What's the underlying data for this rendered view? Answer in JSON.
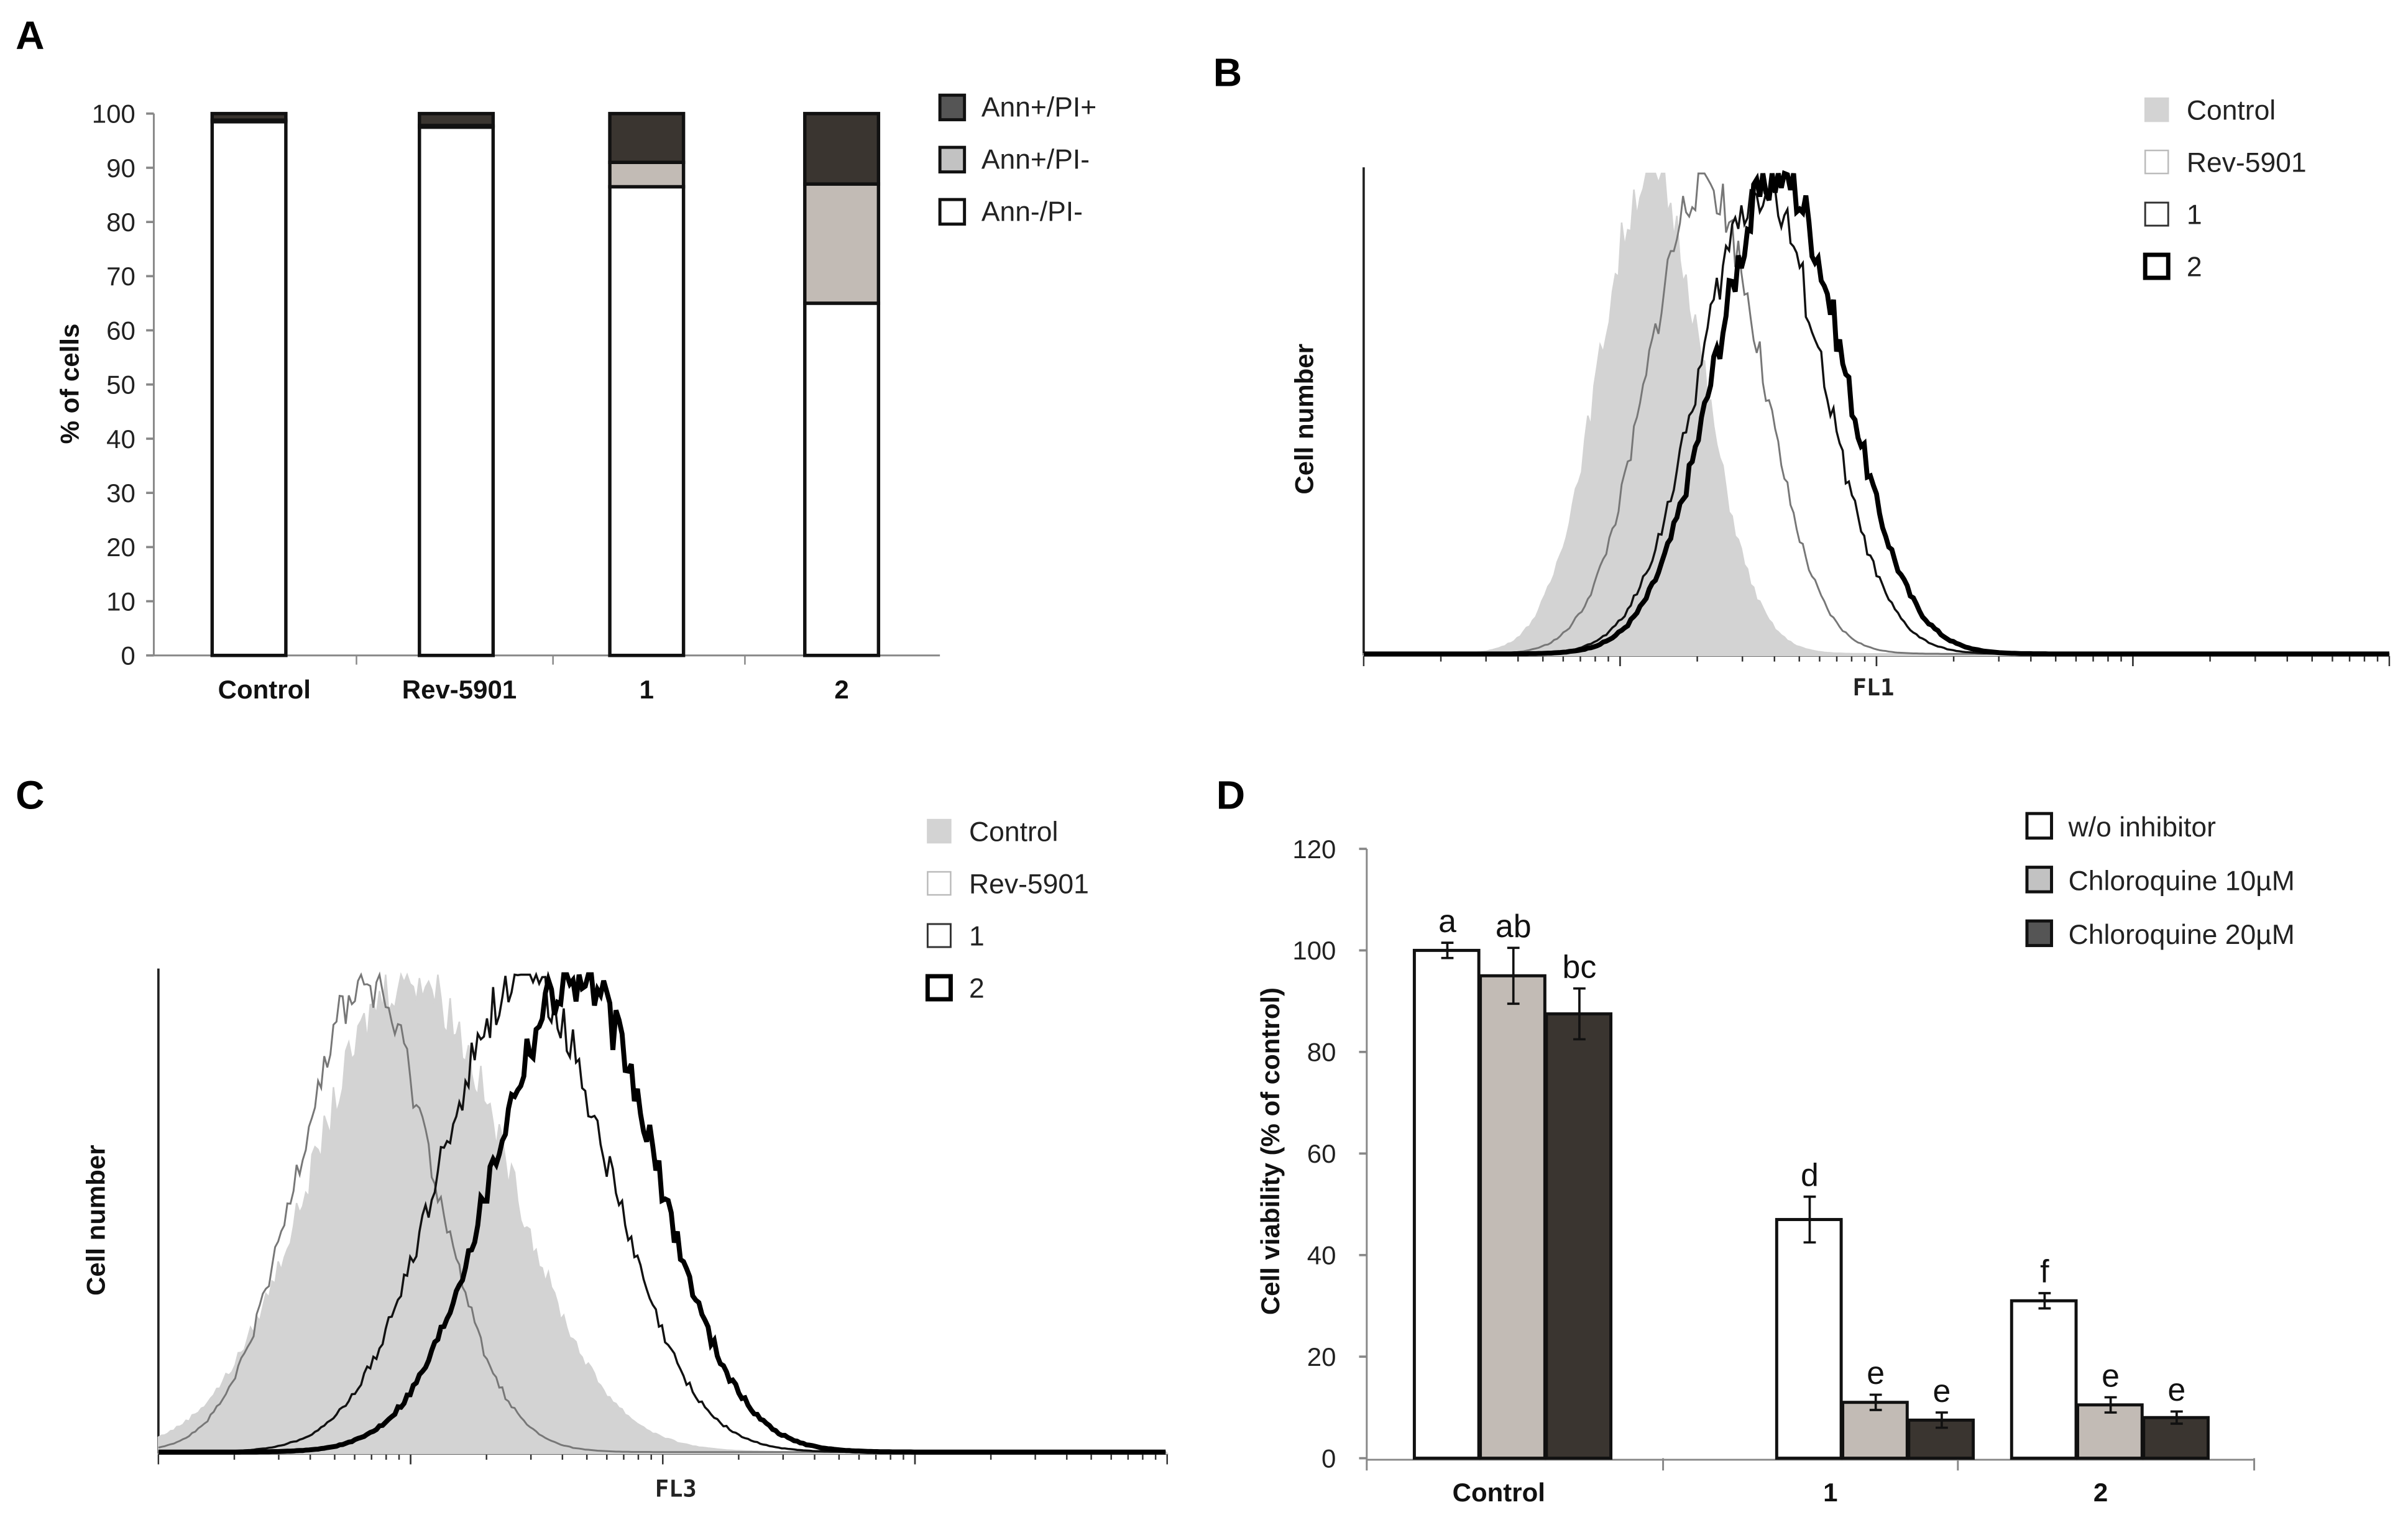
{
  "panels": {
    "a": "A",
    "b": "B",
    "c": "C",
    "d": "D"
  },
  "chart_data": [
    {
      "id": "A",
      "type": "bar",
      "stacked": true,
      "categories": [
        "Control",
        "Rev-5901",
        "1",
        "2"
      ],
      "ylabel": "% of cells",
      "ylim": [
        0,
        100
      ],
      "yticks": [
        0,
        10,
        20,
        30,
        40,
        50,
        60,
        70,
        80,
        90,
        100
      ],
      "series": [
        {
          "name": "Ann-/PI-",
          "color": "#ffffff",
          "values": [
            98.5,
            97.5,
            86.5,
            65
          ]
        },
        {
          "name": "Ann+/PI-",
          "color": "#c2bbb5",
          "values": [
            0.3,
            0.3,
            4.5,
            22
          ]
        },
        {
          "name": "Ann+/PI+",
          "color": "#3a3530",
          "values": [
            1.2,
            2.2,
            9,
            13
          ]
        }
      ],
      "legend_order": [
        "Ann+/PI+",
        "Ann+/PI-",
        "Ann-/PI-"
      ],
      "legend_colors": [
        "#555555",
        "#c2c2c2",
        "#ffffff"
      ]
    },
    {
      "id": "B",
      "type": "line",
      "subtype": "flow-histogram",
      "xlabel": "FL1",
      "ylabel": "Cell number",
      "xlim_log_decades": [
        0,
        4
      ],
      "series": [
        {
          "name": "Control",
          "style": "filled-gray",
          "peak_log": 1.12,
          "sd_log": 0.2,
          "rel_height": 1.0
        },
        {
          "name": "Rev-5901",
          "style": "thin-gray",
          "peak_log": 1.33,
          "sd_log": 0.22,
          "rel_height": 0.99
        },
        {
          "name": "1",
          "style": "thin-black",
          "peak_log": 1.55,
          "sd_log": 0.24,
          "rel_height": 0.97
        },
        {
          "name": "2",
          "style": "thick-black",
          "peak_log": 1.62,
          "sd_log": 0.25,
          "rel_height": 1.0
        }
      ]
    },
    {
      "id": "C",
      "type": "line",
      "subtype": "flow-histogram",
      "xlabel": "FL3",
      "ylabel": "Cell number",
      "xlim_log_decades": [
        0,
        4
      ],
      "series": [
        {
          "name": "Control",
          "style": "filled-gray",
          "peak_log": 1.0,
          "sd_log": 0.38,
          "rel_height": 1.0
        },
        {
          "name": "Rev-5901",
          "style": "thin-gray",
          "peak_log": 0.82,
          "sd_log": 0.27,
          "rel_height": 0.98
        },
        {
          "name": "1",
          "style": "thin-black",
          "peak_log": 1.45,
          "sd_log": 0.33,
          "rel_height": 1.0
        },
        {
          "name": "2",
          "style": "thick-black",
          "peak_log": 1.65,
          "sd_log": 0.32,
          "rel_height": 1.0
        }
      ]
    },
    {
      "id": "D",
      "type": "bar",
      "categories": [
        "Control",
        "1",
        "2"
      ],
      "ylabel": "Cell  viability (% of control)",
      "ylim": [
        0,
        120
      ],
      "yticks": [
        0,
        20,
        40,
        60,
        80,
        100,
        120
      ],
      "series": [
        {
          "name": "w/o inhibitor",
          "color": "#ffffff",
          "values": [
            100,
            47,
            31
          ],
          "errors": [
            1.5,
            4.5,
            1.5
          ],
          "letters": [
            "a",
            "d",
            "f"
          ]
        },
        {
          "name": "Chloroquine 10µM",
          "color": "#c2bbb5",
          "values": [
            95,
            11,
            10.5
          ],
          "errors": [
            5.5,
            1.5,
            1.5
          ],
          "letters": [
            "ab",
            "e",
            "e"
          ]
        },
        {
          "name": "Chloroquine 20µM",
          "color": "#3a3530",
          "values": [
            87.5,
            7.5,
            8
          ],
          "errors": [
            5,
            1.5,
            1.2
          ],
          "letters": [
            "bc",
            "e",
            "e"
          ]
        }
      ],
      "legend_colors": [
        "#ffffff",
        "#c2c2c2",
        "#555555"
      ]
    }
  ]
}
